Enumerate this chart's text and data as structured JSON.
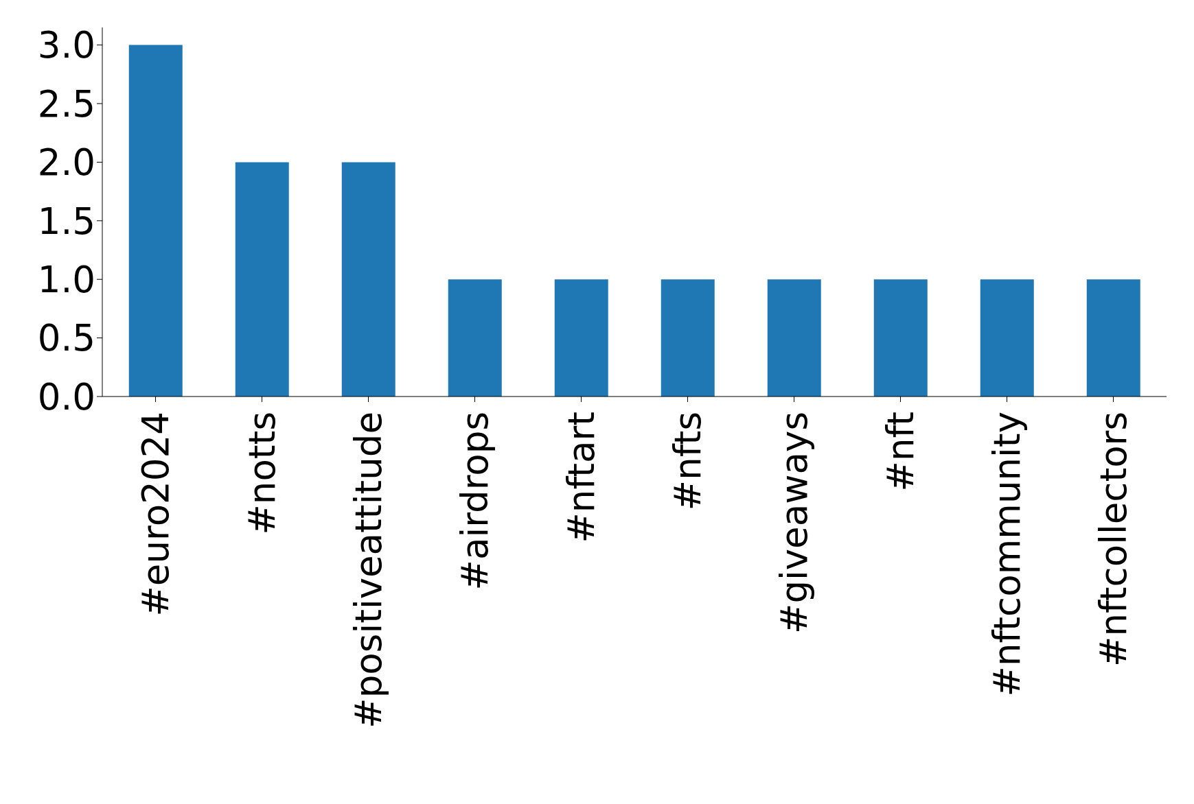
{
  "chart_data": {
    "type": "bar",
    "categories": [
      "#euro2024",
      "#notts",
      "#positiveattitude",
      "#airdrops",
      "#nftart",
      "#nfts",
      "#giveaways",
      "#nft",
      "#nftcommunity",
      "#nftcollectors"
    ],
    "values": [
      3,
      2,
      2,
      1,
      1,
      1,
      1,
      1,
      1,
      1
    ],
    "color": "#1f77b4",
    "ylim": [
      0,
      3.15
    ],
    "yticks": [
      {
        "value": 0,
        "label": "0.0"
      },
      {
        "value": 0.5,
        "label": "0.5"
      },
      {
        "value": 1,
        "label": "1.0"
      },
      {
        "value": 1.5,
        "label": "1.5"
      },
      {
        "value": 2,
        "label": "2.0"
      },
      {
        "value": 2.5,
        "label": "2.5"
      },
      {
        "value": 3,
        "label": "3.0"
      }
    ],
    "grid": false,
    "legend": false
  }
}
